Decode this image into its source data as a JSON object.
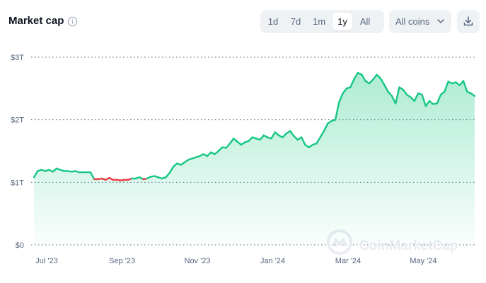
{
  "header": {
    "title": "Market cap",
    "ranges": [
      "1d",
      "7d",
      "1m",
      "1y",
      "All"
    ],
    "active_range": "1y",
    "coins_select": "All coins"
  },
  "icons": {
    "info": "info-icon",
    "chevron": "chevron-down-icon",
    "download": "download-icon",
    "watermark_logo": "coinmarketcap-logo-icon"
  },
  "watermark": "CoinMarketCap",
  "colors": {
    "up": "#16c784",
    "down": "#ea3943",
    "grid": "#58667e",
    "area_top": "#16c784"
  },
  "chart_data": {
    "type": "area",
    "title": "Market cap",
    "ylabel": "",
    "xlabel": "",
    "y_ticks": [
      "$0",
      "$1T",
      "$2T",
      "$3T"
    ],
    "y_tick_values": [
      0,
      1,
      2,
      3
    ],
    "ylim": [
      0,
      3
    ],
    "x_ticks": [
      "Jul '23",
      "Sep '23",
      "Nov '23",
      "Jan '24",
      "Mar '24",
      "May '24"
    ],
    "x_tick_values": [
      0.5,
      2.5,
      4.5,
      6.5,
      8.5,
      10.5
    ],
    "xlim": [
      0.5,
      12.2
    ],
    "grid": true,
    "baseline_value": 1.06,
    "series": [
      {
        "values_unit": "trillion USD",
        "x": [
          0.5,
          0.6,
          0.7,
          0.8,
          0.9,
          1.0,
          1.1,
          1.2,
          1.3,
          1.4,
          1.5,
          1.6,
          1.7,
          1.8,
          1.9,
          2.0,
          2.1,
          2.2,
          2.3,
          2.4,
          2.5,
          2.6,
          2.7,
          2.8,
          2.9,
          3.0,
          3.1,
          3.2,
          3.3,
          3.4,
          3.5,
          3.6,
          3.7,
          3.8,
          3.9,
          4.0,
          4.1,
          4.2,
          4.3,
          4.4,
          4.5,
          4.6,
          4.7,
          4.8,
          4.9,
          5.0,
          5.1,
          5.2,
          5.3,
          5.4,
          5.5,
          5.6,
          5.7,
          5.8,
          5.9,
          6.0,
          6.1,
          6.2,
          6.3,
          6.4,
          6.5,
          6.6,
          6.7,
          6.8,
          6.9,
          7.0,
          7.1,
          7.2,
          7.3,
          7.4,
          7.5,
          7.6,
          7.7,
          7.8,
          7.9,
          8.0,
          8.1,
          8.2,
          8.3,
          8.4,
          8.5,
          8.6,
          8.7,
          8.8,
          8.9,
          9.0,
          9.1,
          9.2,
          9.3,
          9.4,
          9.5,
          9.6,
          9.7,
          9.8,
          9.9,
          10.0,
          10.1,
          10.2,
          10.3,
          10.4,
          10.5,
          10.6,
          10.7,
          10.8,
          10.9,
          11.0,
          11.1,
          11.2,
          11.3,
          11.4,
          11.5,
          11.6,
          11.7,
          11.8,
          11.9,
          12.0,
          12.1,
          12.2
        ],
        "values": [
          1.08,
          1.18,
          1.2,
          1.18,
          1.2,
          1.17,
          1.22,
          1.2,
          1.18,
          1.18,
          1.17,
          1.18,
          1.16,
          1.16,
          1.16,
          1.16,
          1.05,
          1.05,
          1.06,
          1.04,
          1.07,
          1.04,
          1.04,
          1.03,
          1.04,
          1.04,
          1.06,
          1.06,
          1.08,
          1.05,
          1.06,
          1.09,
          1.1,
          1.08,
          1.06,
          1.08,
          1.15,
          1.25,
          1.3,
          1.28,
          1.32,
          1.36,
          1.38,
          1.4,
          1.42,
          1.45,
          1.42,
          1.48,
          1.45,
          1.5,
          1.56,
          1.55,
          1.62,
          1.7,
          1.65,
          1.6,
          1.64,
          1.66,
          1.72,
          1.7,
          1.68,
          1.75,
          1.72,
          1.7,
          1.8,
          1.75,
          1.72,
          1.78,
          1.82,
          1.74,
          1.68,
          1.72,
          1.6,
          1.56,
          1.6,
          1.62,
          1.72,
          1.82,
          1.94,
          1.98,
          2.0,
          2.28,
          2.42,
          2.5,
          2.52,
          2.65,
          2.75,
          2.72,
          2.62,
          2.58,
          2.64,
          2.72,
          2.66,
          2.56,
          2.45,
          2.38,
          2.26,
          2.52,
          2.48,
          2.4,
          2.36,
          2.3,
          2.42,
          2.4,
          2.22,
          2.3,
          2.25,
          2.26,
          2.4,
          2.45,
          2.61,
          2.58,
          2.6,
          2.55,
          2.62,
          2.45,
          2.42,
          2.38
        ]
      }
    ]
  }
}
